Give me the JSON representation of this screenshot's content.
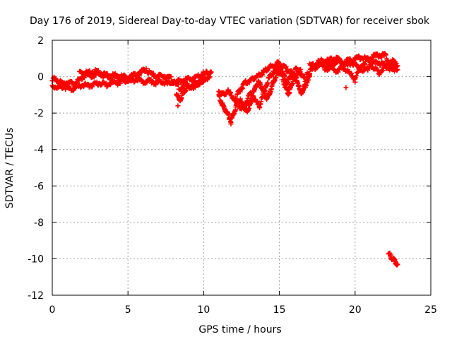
{
  "chart_data": {
    "type": "scatter",
    "title": "Day 176 of 2019, Sidereal Day-to-day VTEC variation (SDTVAR) for receiver sbok",
    "xlabel": "GPS time / hours",
    "ylabel": "SDTVAR / TECUs",
    "xlim": [
      0,
      25
    ],
    "ylim": [
      -12,
      2
    ],
    "xticks": [
      0,
      5,
      10,
      15,
      20,
      25
    ],
    "yticks": [
      -12,
      -10,
      -8,
      -6,
      -4,
      -2,
      0,
      2
    ],
    "grid": true,
    "marker": "+",
    "color": "#ff0000",
    "series": [
      {
        "name": "SDTVAR",
        "traces": [
          {
            "x": [
              0.0,
              0.4,
              0.8,
              1.2,
              1.6,
              2.0,
              2.4,
              2.8,
              3.2,
              3.6,
              4.0,
              4.4,
              4.8,
              5.2,
              5.6,
              6.0,
              6.4,
              6.8,
              7.2,
              7.6,
              8.0,
              8.4,
              8.8,
              9.2,
              9.6,
              10.0,
              10.4
            ],
            "y": [
              -0.5,
              -0.6,
              -0.55,
              -0.7,
              -0.6,
              -0.45,
              -0.5,
              -0.4,
              -0.35,
              -0.45,
              -0.3,
              -0.35,
              -0.2,
              -0.25,
              -0.1,
              -0.3,
              -0.2,
              -0.35,
              -0.25,
              -0.4,
              -0.3,
              -0.6,
              -0.45,
              -0.55,
              -0.3,
              -0.1,
              0.0
            ]
          },
          {
            "x": [
              0.0,
              0.3,
              0.6,
              1.0,
              1.4,
              1.8,
              2.2,
              2.6,
              3.0,
              3.4,
              3.8,
              4.2,
              4.6,
              5.0,
              5.4,
              5.8,
              6.2,
              6.6,
              7.0,
              7.4,
              7.8,
              8.2,
              8.6,
              9.0,
              9.4,
              9.8,
              10.2,
              10.5
            ],
            "y": [
              -0.1,
              -0.2,
              -0.35,
              -0.3,
              -0.4,
              -0.2,
              0.1,
              0.0,
              0.15,
              0.05,
              -0.05,
              0.0,
              -0.1,
              -0.05,
              0.1,
              0.2,
              0.35,
              0.1,
              0.0,
              0.05,
              -0.1,
              -0.3,
              -0.2,
              -0.15,
              -0.1,
              0.1,
              0.2,
              0.25
            ]
          },
          {
            "x": [
              1.8,
              2.2,
              2.6,
              3.0,
              3.4,
              3.8,
              4.2,
              4.6,
              5.0,
              5.4,
              5.8,
              6.2
            ],
            "y": [
              0.25,
              0.2,
              0.3,
              0.25,
              0.15,
              0.1,
              0.05,
              0.0,
              -0.05,
              0.05,
              0.2,
              0.45
            ]
          },
          {
            "x": [
              8.2,
              8.4,
              8.6,
              8.8,
              9.0,
              9.2,
              9.4,
              9.6,
              9.8,
              10.0
            ],
            "y": [
              -0.9,
              -1.3,
              -1.0,
              -0.7,
              -0.5,
              -0.6,
              -0.5,
              -0.4,
              -0.3,
              -0.2
            ]
          },
          {
            "x": [
              11.0,
              11.2,
              11.4,
              11.6,
              11.8,
              12.0,
              12.2,
              12.4,
              12.6,
              12.8,
              13.0,
              13.2,
              13.4,
              13.6,
              13.8,
              14.0,
              14.2,
              14.4,
              14.6,
              14.8,
              15.0,
              15.2,
              15.4,
              15.6,
              15.8,
              16.0,
              16.2,
              16.4,
              16.6,
              16.8,
              17.0
            ],
            "y": [
              -1.0,
              -1.5,
              -1.8,
              -2.1,
              -2.4,
              -2.0,
              -1.5,
              -1.3,
              -1.6,
              -1.9,
              -1.7,
              -1.2,
              -0.6,
              -0.3,
              -0.5,
              -0.9,
              -1.2,
              -0.8,
              -0.3,
              0.1,
              0.3,
              0.0,
              -0.6,
              -0.9,
              -0.5,
              0.1,
              -0.3,
              -0.9,
              -0.7,
              -0.3,
              0.1
            ]
          },
          {
            "x": [
              11.0,
              11.3,
              11.6,
              11.9,
              12.2,
              12.5,
              12.8,
              13.1,
              13.4,
              13.7,
              14.0,
              14.3,
              14.6,
              14.9,
              15.2,
              15.5,
              15.8,
              16.1,
              16.4,
              16.7,
              17.0
            ],
            "y": [
              -0.8,
              -1.0,
              -0.8,
              -1.1,
              -1.4,
              -1.8,
              -1.4,
              -0.9,
              -1.3,
              -1.6,
              -0.8,
              -0.1,
              0.3,
              0.5,
              0.2,
              -0.3,
              0.0,
              0.4,
              0.2,
              -0.2,
              0.0
            ]
          },
          {
            "x": [
              12.2,
              12.5,
              12.8,
              13.1,
              13.4,
              13.7,
              14.0,
              14.3,
              14.6,
              14.9,
              15.2,
              15.5,
              15.8,
              16.1,
              16.4
            ],
            "y": [
              -1.0,
              -0.6,
              -0.3,
              -0.2,
              0.0,
              0.1,
              0.3,
              0.5,
              0.6,
              0.7,
              0.6,
              0.4,
              0.2,
              0.0,
              0.4
            ]
          },
          {
            "x": [
              16.8,
              17.2,
              17.6,
              18.0,
              18.4,
              18.8,
              19.2,
              19.6,
              20.0,
              20.4,
              20.8,
              21.2,
              21.6,
              22.0,
              22.4,
              22.8
            ],
            "y": [
              0.2,
              0.4,
              0.6,
              0.55,
              0.7,
              0.8,
              0.75,
              0.9,
              1.0,
              1.05,
              0.95,
              1.1,
              1.2,
              1.15,
              0.6,
              0.4
            ]
          },
          {
            "x": [
              17.0,
              17.4,
              17.8,
              18.2,
              18.6,
              19.0,
              19.4,
              19.8,
              20.2,
              20.6,
              21.0,
              21.4,
              21.8,
              22.2,
              22.6
            ],
            "y": [
              0.6,
              0.7,
              0.9,
              0.85,
              1.0,
              0.9,
              0.6,
              0.8,
              0.5,
              0.3,
              0.6,
              0.8,
              0.7,
              0.5,
              0.3
            ]
          },
          {
            "x": [
              18.0,
              18.4,
              18.8,
              19.2,
              19.6,
              20.0,
              20.4,
              20.8,
              21.2,
              21.6,
              22.0,
              22.4,
              22.8
            ],
            "y": [
              0.4,
              0.5,
              0.3,
              0.5,
              0.2,
              -0.1,
              0.6,
              0.9,
              0.5,
              0.2,
              0.6,
              0.9,
              0.6
            ]
          },
          {
            "x": [
              22.2,
              22.4,
              22.6,
              22.8
            ],
            "y": [
              -9.7,
              -9.95,
              -10.1,
              -10.3
            ]
          }
        ],
        "outliers": [
          {
            "x": 19.4,
            "y": -0.6
          },
          {
            "x": 20.0,
            "y": -0.3
          },
          {
            "x": 8.3,
            "y": -1.6
          },
          {
            "x": 11.8,
            "y": -2.6
          }
        ]
      }
    ]
  }
}
